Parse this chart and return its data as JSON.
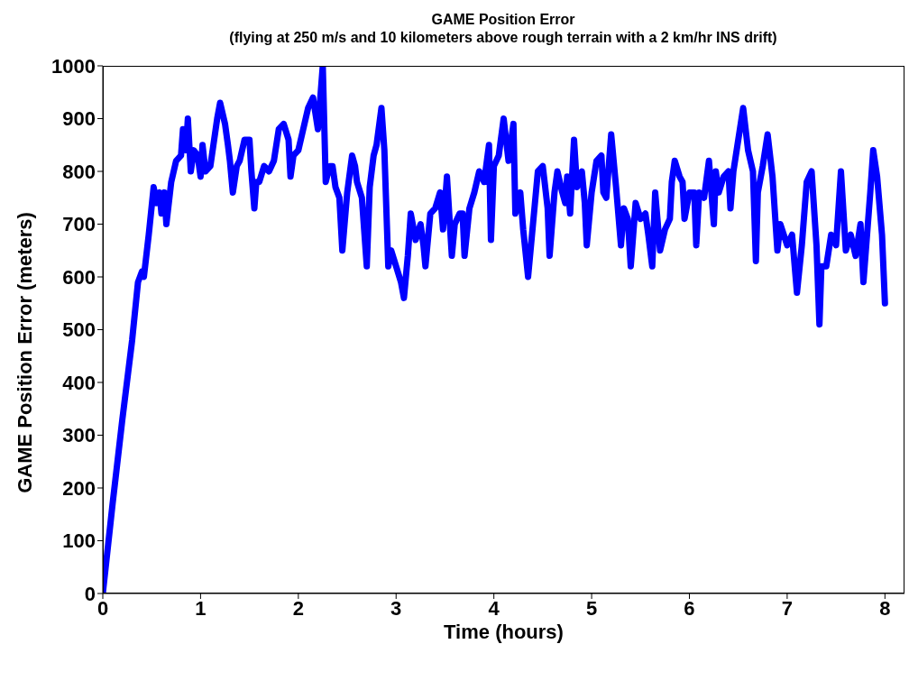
{
  "chart_data": {
    "type": "line",
    "title": "GAME Position Error",
    "subtitle": "(flying at 250 m/s and 10 kilometers above rough terrain with a 2 km/hr INS drift)",
    "xlabel": "Time (hours)",
    "ylabel": "GAME Position Error (meters)",
    "xlim": [
      0,
      8.2
    ],
    "xticks": [
      0,
      1,
      2,
      3,
      4,
      5,
      6,
      7,
      8
    ],
    "ylim": [
      0,
      1000
    ],
    "yticks": [
      0,
      100,
      200,
      300,
      400,
      500,
      600,
      700,
      800,
      900,
      1000
    ],
    "grid": false,
    "legend": false,
    "marker": "none",
    "line_style": "solid",
    "series": [
      {
        "color": "#0000ff",
        "x": [
          0,
          0.1,
          0.2,
          0.3,
          0.36,
          0.4,
          0.42,
          0.47,
          0.52,
          0.55,
          0.58,
          0.6,
          0.63,
          0.65,
          0.7,
          0.75,
          0.8,
          0.82,
          0.85,
          0.87,
          0.9,
          0.93,
          0.97,
          1.0,
          1.02,
          1.05,
          1.1,
          1.17,
          1.2,
          1.25,
          1.28,
          1.3,
          1.33,
          1.37,
          1.4,
          1.45,
          1.5,
          1.52,
          1.55,
          1.57,
          1.6,
          1.65,
          1.7,
          1.75,
          1.8,
          1.85,
          1.9,
          1.92,
          1.95,
          2.0,
          2.05,
          2.1,
          2.15,
          2.2,
          2.25,
          2.28,
          2.32,
          2.35,
          2.38,
          2.42,
          2.45,
          2.5,
          2.55,
          2.58,
          2.6,
          2.65,
          2.7,
          2.73,
          2.77,
          2.8,
          2.85,
          2.88,
          2.92,
          2.95,
          3.0,
          3.05,
          3.08,
          3.12,
          3.15,
          3.2,
          3.25,
          3.28,
          3.3,
          3.35,
          3.4,
          3.45,
          3.48,
          3.52,
          3.57,
          3.6,
          3.65,
          3.68,
          3.7,
          3.75,
          3.8,
          3.85,
          3.9,
          3.95,
          3.97,
          4.0,
          4.05,
          4.1,
          4.15,
          4.2,
          4.22,
          4.27,
          4.3,
          4.35,
          4.4,
          4.45,
          4.5,
          4.55,
          4.57,
          4.62,
          4.65,
          4.7,
          4.73,
          4.75,
          4.78,
          4.82,
          4.85,
          4.9,
          4.93,
          4.95,
          5.0,
          5.05,
          5.1,
          5.12,
          5.15,
          5.2,
          5.25,
          5.3,
          5.33,
          5.37,
          5.4,
          5.45,
          5.5,
          5.55,
          5.58,
          5.62,
          5.65,
          5.7,
          5.75,
          5.8,
          5.82,
          5.85,
          5.9,
          5.93,
          5.95,
          6.0,
          6.05,
          6.07,
          6.1,
          6.15,
          6.2,
          6.25,
          6.27,
          6.3,
          6.35,
          6.4,
          6.42,
          6.45,
          6.5,
          6.55,
          6.6,
          6.65,
          6.68,
          6.7,
          6.75,
          6.8,
          6.85,
          6.9,
          6.93,
          7.0,
          7.05,
          7.1,
          7.15,
          7.2,
          7.25,
          7.3,
          7.33,
          7.35,
          7.4,
          7.45,
          7.5,
          7.55,
          7.6,
          7.65,
          7.7,
          7.75,
          7.78,
          7.85,
          7.88,
          7.92,
          7.97,
          8.0
        ],
        "values": [
          0,
          170,
          330,
          480,
          590,
          610,
          600,
          680,
          770,
          740,
          760,
          720,
          760,
          700,
          780,
          820,
          830,
          880,
          840,
          900,
          800,
          840,
          830,
          790,
          850,
          800,
          810,
          900,
          930,
          890,
          850,
          820,
          760,
          810,
          820,
          860,
          860,
          800,
          730,
          780,
          780,
          810,
          800,
          820,
          880,
          890,
          860,
          790,
          830,
          840,
          880,
          920,
          940,
          880,
          1000,
          780,
          810,
          810,
          770,
          750,
          650,
          760,
          830,
          810,
          780,
          750,
          620,
          770,
          830,
          850,
          920,
          840,
          620,
          650,
          620,
          590,
          560,
          640,
          720,
          670,
          700,
          660,
          620,
          720,
          730,
          760,
          690,
          790,
          640,
          700,
          720,
          720,
          640,
          730,
          760,
          800,
          780,
          850,
          670,
          810,
          830,
          900,
          820,
          890,
          720,
          760,
          690,
          600,
          700,
          800,
          810,
          730,
          640,
          760,
          800,
          760,
          740,
          790,
          720,
          860,
          770,
          800,
          740,
          660,
          760,
          820,
          830,
          760,
          750,
          870,
          770,
          660,
          730,
          710,
          620,
          740,
          710,
          720,
          680,
          620,
          760,
          650,
          690,
          710,
          780,
          820,
          790,
          780,
          710,
          760,
          760,
          660,
          760,
          750,
          820,
          700,
          800,
          760,
          790,
          800,
          730,
          800,
          860,
          920,
          840,
          800,
          630,
          760,
          810,
          870,
          790,
          650,
          700,
          660,
          680,
          570,
          660,
          780,
          800,
          660,
          510,
          620,
          620,
          680,
          660,
          800,
          650,
          680,
          640,
          700,
          590,
          760,
          840,
          790,
          680,
          550
        ]
      }
    ]
  }
}
